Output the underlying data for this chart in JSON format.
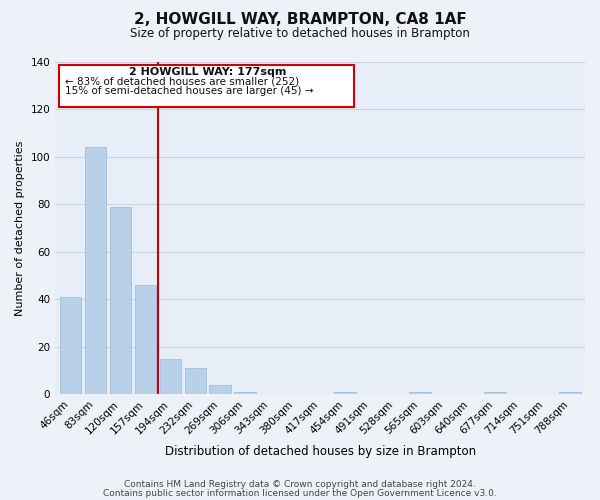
{
  "title": "2, HOWGILL WAY, BRAMPTON, CA8 1AF",
  "subtitle": "Size of property relative to detached houses in Brampton",
  "xlabel": "Distribution of detached houses by size in Brampton",
  "ylabel": "Number of detached properties",
  "bar_labels": [
    "46sqm",
    "83sqm",
    "120sqm",
    "157sqm",
    "194sqm",
    "232sqm",
    "269sqm",
    "306sqm",
    "343sqm",
    "380sqm",
    "417sqm",
    "454sqm",
    "491sqm",
    "528sqm",
    "565sqm",
    "603sqm",
    "640sqm",
    "677sqm",
    "714sqm",
    "751sqm",
    "788sqm"
  ],
  "bar_values": [
    41,
    104,
    79,
    46,
    15,
    11,
    4,
    1,
    0,
    0,
    0,
    1,
    0,
    0,
    1,
    0,
    0,
    1,
    0,
    0,
    1
  ],
  "bar_color": "#b8d0e8",
  "bar_edge_color": "#9ab8d8",
  "vline_x": 3.5,
  "vline_color": "#cc0000",
  "ylim": [
    0,
    140
  ],
  "yticks": [
    0,
    20,
    40,
    60,
    80,
    100,
    120,
    140
  ],
  "annotation_title": "2 HOWGILL WAY: 177sqm",
  "annotation_line1": "← 83% of detached houses are smaller (252)",
  "annotation_line2": "15% of semi-detached houses are larger (45) →",
  "footer_line1": "Contains HM Land Registry data © Crown copyright and database right 2024.",
  "footer_line2": "Contains public sector information licensed under the Open Government Licence v3.0.",
  "bg_color": "#eef2f8",
  "plot_bg_color": "#e8eef8",
  "grid_color": "#c8d4e8",
  "title_fontsize": 11,
  "subtitle_fontsize": 8.5,
  "xlabel_fontsize": 8.5,
  "ylabel_fontsize": 8,
  "tick_fontsize": 7.5,
  "footer_fontsize": 6.5
}
